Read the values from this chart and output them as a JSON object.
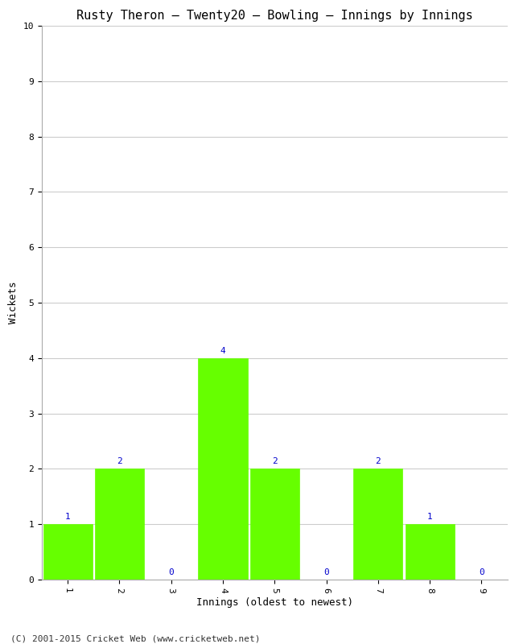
{
  "title": "Rusty Theron – Twenty20 – Bowling – Innings by Innings",
  "xlabel": "Innings (oldest to newest)",
  "ylabel": "Wickets",
  "categories": [
    "1",
    "2",
    "3",
    "4",
    "5",
    "6",
    "7",
    "8",
    "9"
  ],
  "values": [
    1,
    2,
    0,
    4,
    2,
    0,
    2,
    1,
    0
  ],
  "bar_color": "#66ff00",
  "bar_edge_color": "#66ff00",
  "label_color": "#0000cc",
  "ylim": [
    0,
    10
  ],
  "yticks": [
    0,
    1,
    2,
    3,
    4,
    5,
    6,
    7,
    8,
    9,
    10
  ],
  "background_color": "#ffffff",
  "plot_bg_color": "#ffffff",
  "grid_color": "#cccccc",
  "title_fontsize": 11,
  "axis_label_fontsize": 9,
  "tick_fontsize": 8,
  "value_label_fontsize": 8,
  "footer": "(C) 2001-2015 Cricket Web (www.cricketweb.net)"
}
